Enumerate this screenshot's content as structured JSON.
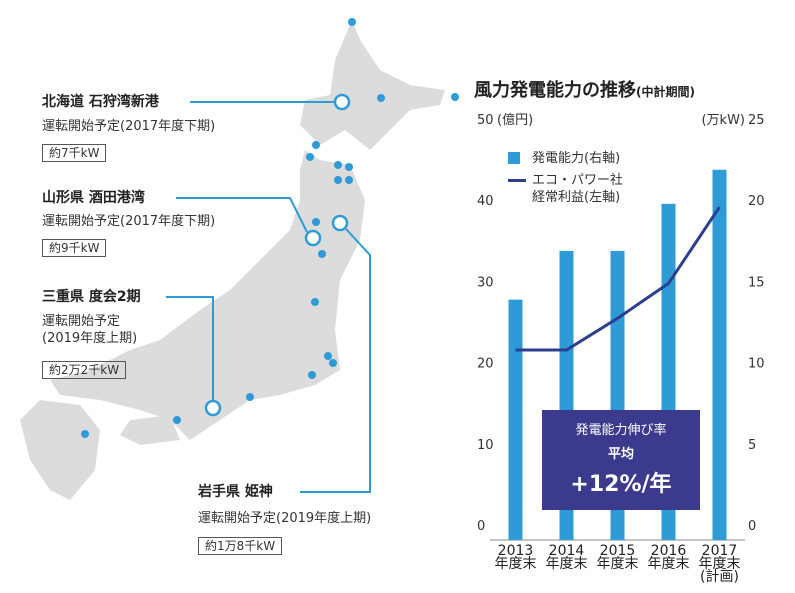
{
  "chart_data": {
    "type": "bar_line",
    "title": "風力発電能力の推移",
    "subtitle": "(中計期間)",
    "y_label": "(億円)",
    "y2_label": "(万kW)",
    "categories": [
      "2013\n年度末",
      "2014\n年度末",
      "2015\n年度末",
      "2016\n年度末",
      "2017\n年度末\n(計画)"
    ],
    "series": [
      {
        "name": "発電能力(右軸)",
        "type": "bar",
        "axis": "y2",
        "color": "#2e9bd6",
        "values": [
          14.8,
          17.8,
          17.8,
          20.7,
          22.8
        ]
      },
      {
        "name": "エコ・パワー社\n経常利益(左軸)",
        "type": "line",
        "axis": "y",
        "color": "#2c3f8f",
        "values": [
          23.4,
          23.4,
          27.3,
          31.6,
          41.0
        ]
      }
    ],
    "ylim": [
      0,
      50
    ],
    "yticks": [
      0,
      10,
      20,
      30,
      40,
      50
    ],
    "y2lim": [
      0,
      25
    ],
    "y2ticks": [
      0,
      5,
      10,
      15,
      20,
      25
    ],
    "annotation": {
      "title": "発電能力伸び率",
      "label": "平均",
      "value": "+12%/年"
    }
  },
  "map": {
    "sites": [
      {
        "name": "北海道 石狩湾新港",
        "status": "運転開始予定(2017年度下期)",
        "capacity": "約7千kW"
      },
      {
        "name": "山形県 酒田港湾",
        "status": "運転開始予定(2017年度下期)",
        "capacity": "約9千kW"
      },
      {
        "name": "三重県 度会2期",
        "status": "運転開始予定\n(2019年度上期)",
        "capacity": "約2万2千kW"
      },
      {
        "name": "岩手県 姫神",
        "status": "運転開始予定(2019年度上期)",
        "capacity": "約1万8千kW"
      }
    ]
  }
}
